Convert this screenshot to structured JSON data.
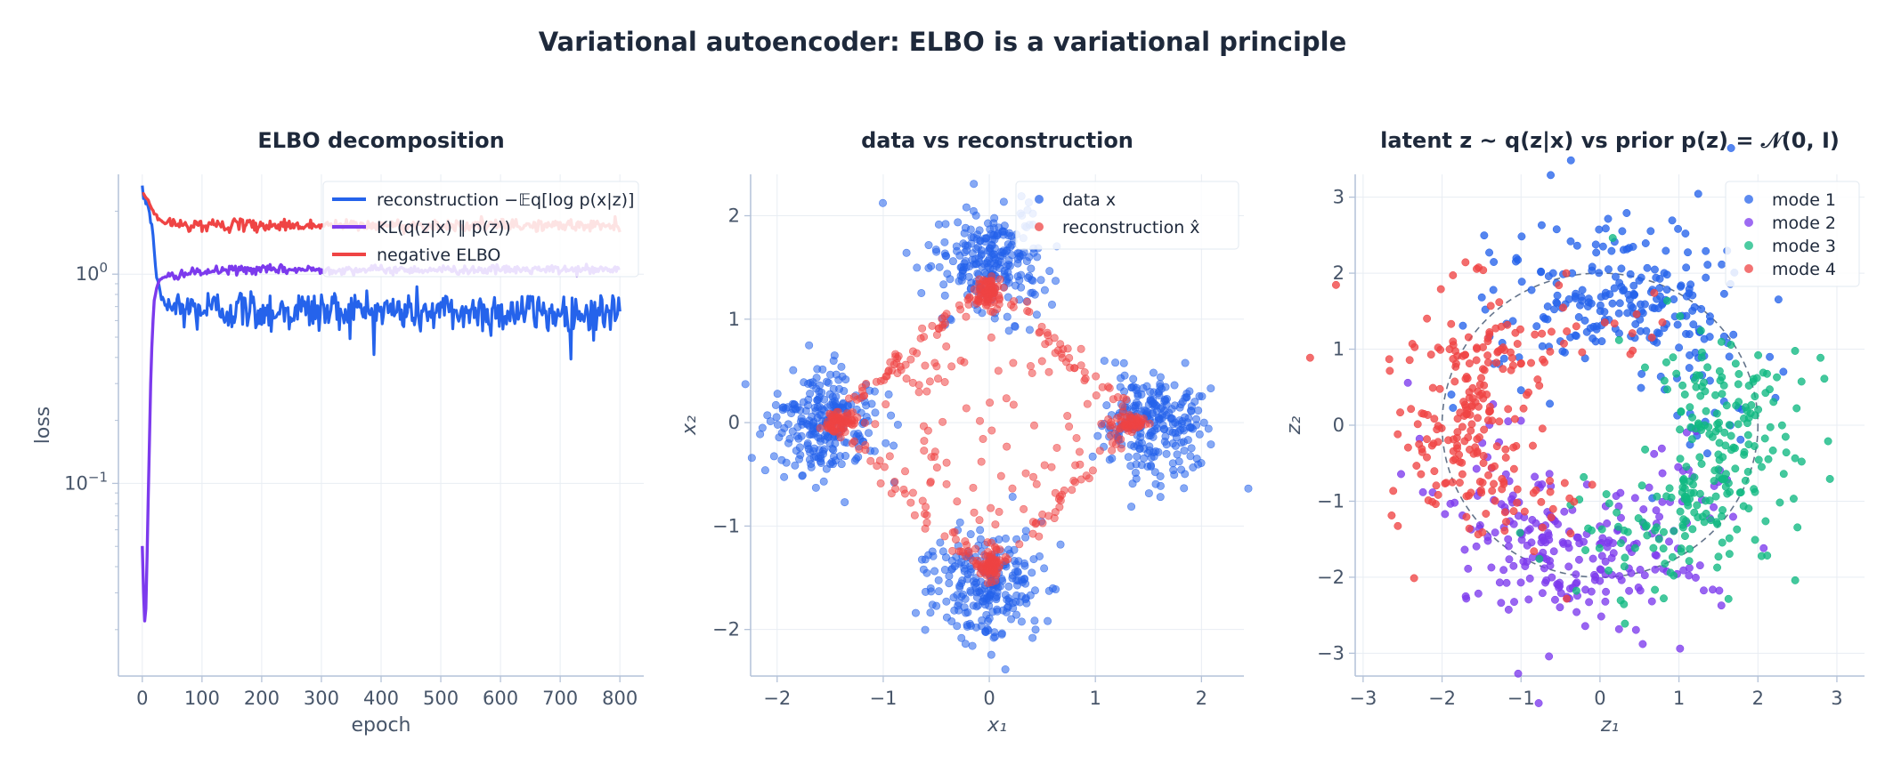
{
  "suptitle": "Variational autoencoder: ELBO is a variational principle",
  "chart_data": [
    {
      "type": "line",
      "title": "ELBO decomposition",
      "xlabel": "epoch",
      "ylabel": "loss",
      "yscale": "log",
      "xlim": [
        -40,
        840
      ],
      "ylim": [
        0.012,
        3.0
      ],
      "xticks": [
        0,
        100,
        200,
        300,
        400,
        500,
        600,
        700,
        800
      ],
      "grid": true,
      "legend": "top-right",
      "series": [
        {
          "name": "reconstruction −𝔼q[log p(x|z)]",
          "color": "#2563eb",
          "x": [
            0,
            5,
            10,
            15,
            20,
            25,
            30,
            35,
            40,
            50,
            60,
            80,
            100,
            150,
            200,
            250,
            300,
            350,
            400,
            450,
            500,
            550,
            600,
            650,
            700,
            750,
            800
          ],
          "y": [
            2.4,
            2.3,
            2.1,
            1.75,
            1.3,
            0.95,
            0.78,
            0.74,
            0.72,
            0.7,
            0.69,
            0.68,
            0.68,
            0.68,
            0.67,
            0.67,
            0.67,
            0.67,
            0.67,
            0.66,
            0.66,
            0.66,
            0.66,
            0.66,
            0.65,
            0.65,
            0.65
          ],
          "noise": 0.12
        },
        {
          "name": "KL(q(z|x) ∥ p(z))",
          "color": "#7c3aed",
          "x": [
            0,
            2,
            5,
            8,
            11,
            14,
            17,
            20,
            25,
            30,
            40,
            60,
            100,
            150,
            200,
            300,
            400,
            500,
            600,
            700,
            800
          ],
          "y": [
            0.05,
            0.03,
            0.019,
            0.045,
            0.12,
            0.3,
            0.55,
            0.75,
            0.88,
            0.94,
            0.97,
            1.0,
            1.02,
            1.05,
            1.05,
            1.05,
            1.05,
            1.05,
            1.05,
            1.05,
            1.05
          ],
          "noise": 0.03
        },
        {
          "name": "negative ELBO",
          "color": "#ef4444",
          "x": [
            0,
            5,
            10,
            15,
            20,
            25,
            30,
            40,
            60,
            100,
            200,
            300,
            400,
            500,
            600,
            700,
            800
          ],
          "y": [
            2.45,
            2.35,
            2.25,
            2.1,
            1.95,
            1.85,
            1.8,
            1.75,
            1.73,
            1.72,
            1.71,
            1.71,
            1.71,
            1.71,
            1.71,
            1.71,
            1.71
          ],
          "noise": 0.04
        }
      ]
    },
    {
      "type": "scatter",
      "title": "data vs reconstruction",
      "xlabel": "x₁",
      "ylabel": "x₂",
      "xlim": [
        -2.25,
        2.4
      ],
      "ylim": [
        -2.45,
        2.4
      ],
      "xticks": [
        -2,
        -1,
        0,
        1,
        2
      ],
      "yticks": [
        -2,
        -1,
        0,
        1,
        2
      ],
      "grid": true,
      "legend": "top-right",
      "series": [
        {
          "name": "data x",
          "color": "#2563eb",
          "description": "four Gaussian clusters",
          "centers": [
            [
              0,
              1.55
            ],
            [
              1.55,
              0
            ],
            [
              0,
              -1.55
            ],
            [
              -1.55,
              0
            ]
          ],
          "std": 0.26,
          "n_per_cluster": 250
        },
        {
          "name": "reconstruction x̂",
          "color": "#ef4444",
          "description": "points concentrated on the diamond |x1|+|x2|=1.4",
          "vertices": [
            [
              0,
              1.35
            ],
            [
              1.4,
              0
            ],
            [
              0,
              -1.45
            ],
            [
              -1.5,
              0
            ]
          ],
          "n": 520
        }
      ]
    },
    {
      "type": "scatter",
      "title": "latent z ~ q(z|x) vs prior p(z) = 𝒩(0, I)",
      "xlabel": "z₁",
      "ylabel": "z₂",
      "xlim": [
        -3.1,
        3.35
      ],
      "ylim": [
        -3.3,
        3.3
      ],
      "xticks": [
        -3,
        -2,
        -1,
        0,
        1,
        2,
        3
      ],
      "yticks": [
        -3,
        -2,
        -1,
        0,
        1,
        2,
        3
      ],
      "grid": true,
      "legend": "top-right",
      "prior_circle_radius": 2.0,
      "series": [
        {
          "name": "mode 1",
          "color": "#2563eb",
          "center": [
            0.3,
            1.2
          ],
          "n": 250
        },
        {
          "name": "mode 2",
          "color": "#7c3aed",
          "center": [
            -0.35,
            -1.3
          ],
          "n": 250
        },
        {
          "name": "mode 3",
          "color": "#10b981",
          "center": [
            1.05,
            -0.45
          ],
          "n": 250
        },
        {
          "name": "mode 4",
          "color": "#ef4444",
          "center": [
            -1.25,
            0.15
          ],
          "n": 250
        }
      ]
    }
  ]
}
